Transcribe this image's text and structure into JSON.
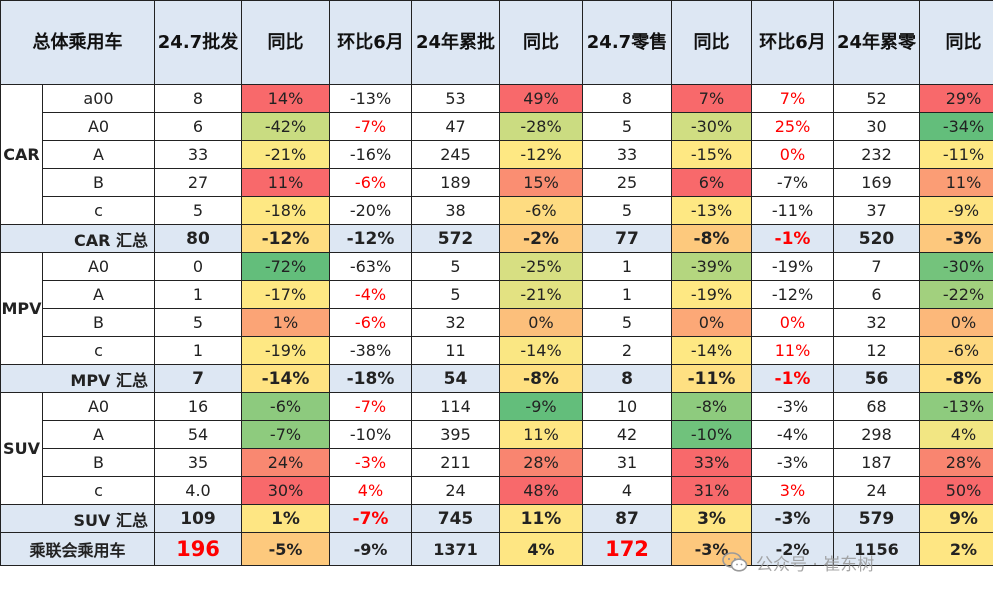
{
  "headers": [
    "总体乘用车",
    "24.7批发",
    "同比",
    "环比6月",
    "24年累批",
    "同比",
    "24.7零售",
    "同比",
    "环比6月",
    "24年累零",
    "同比"
  ],
  "groups": [
    {
      "label": "CAR",
      "rows": [
        {
          "sub": "a00",
          "cells": [
            {
              "v": "8"
            },
            {
              "v": "14%",
              "bg": "#f8696b"
            },
            {
              "v": "-13%"
            },
            {
              "v": "53"
            },
            {
              "v": "49%",
              "bg": "#f8696b"
            },
            {
              "v": "8"
            },
            {
              "v": "7%",
              "bg": "#f8696b"
            },
            {
              "v": "7%",
              "red": true
            },
            {
              "v": "52"
            },
            {
              "v": "29%",
              "bg": "#f8696b"
            }
          ]
        },
        {
          "sub": "A0",
          "cells": [
            {
              "v": "6"
            },
            {
              "v": "-42%",
              "bg": "#c9dc81"
            },
            {
              "v": "-7%",
              "red": true
            },
            {
              "v": "47"
            },
            {
              "v": "-28%",
              "bg": "#cbdc81"
            },
            {
              "v": "5"
            },
            {
              "v": "-30%",
              "bg": "#d0de82"
            },
            {
              "v": "25%",
              "red": true
            },
            {
              "v": "30"
            },
            {
              "v": "-34%",
              "bg": "#63be7b"
            }
          ]
        },
        {
          "sub": "A",
          "cells": [
            {
              "v": "33"
            },
            {
              "v": "-21%",
              "bg": "#fbe983"
            },
            {
              "v": "-16%"
            },
            {
              "v": "245"
            },
            {
              "v": "-12%",
              "bg": "#fee883"
            },
            {
              "v": "33"
            },
            {
              "v": "-15%",
              "bg": "#fee883"
            },
            {
              "v": "0%",
              "red": true
            },
            {
              "v": "232"
            },
            {
              "v": "-11%",
              "bg": "#fee883"
            }
          ]
        },
        {
          "sub": "B",
          "cells": [
            {
              "v": "27"
            },
            {
              "v": "11%",
              "bg": "#f8696b"
            },
            {
              "v": "-6%",
              "red": true
            },
            {
              "v": "189"
            },
            {
              "v": "15%",
              "bg": "#fa8e72"
            },
            {
              "v": "25"
            },
            {
              "v": "6%",
              "bg": "#f8696b"
            },
            {
              "v": "-7%"
            },
            {
              "v": "169"
            },
            {
              "v": "11%",
              "bg": "#fb9d75"
            }
          ]
        },
        {
          "sub": "c",
          "cells": [
            {
              "v": "5"
            },
            {
              "v": "-18%",
              "bg": "#fee883"
            },
            {
              "v": "-20%"
            },
            {
              "v": "38"
            },
            {
              "v": "-6%",
              "bg": "#fedc81"
            },
            {
              "v": "5"
            },
            {
              "v": "-13%",
              "bg": "#fee883"
            },
            {
              "v": "-11%"
            },
            {
              "v": "37"
            },
            {
              "v": "-9%",
              "bg": "#fee482"
            }
          ]
        }
      ],
      "summary": {
        "label": "CAR 汇总",
        "cells": [
          {
            "v": "80"
          },
          {
            "v": "-12%",
            "bg": "#fedd81"
          },
          {
            "v": "-12%"
          },
          {
            "v": "572"
          },
          {
            "v": "-2%",
            "bg": "#fdca7d"
          },
          {
            "v": "77"
          },
          {
            "v": "-8%",
            "bg": "#fdc97d"
          },
          {
            "v": "-1%",
            "red": true
          },
          {
            "v": "520"
          },
          {
            "v": "-3%",
            "bg": "#fdc87d"
          }
        ]
      }
    },
    {
      "label": "MPV",
      "rows": [
        {
          "sub": "A0",
          "cells": [
            {
              "v": "0"
            },
            {
              "v": "-72%",
              "bg": "#63be7b"
            },
            {
              "v": "-63%"
            },
            {
              "v": "5"
            },
            {
              "v": "-25%",
              "bg": "#d7df82"
            },
            {
              "v": "1"
            },
            {
              "v": "-39%",
              "bg": "#b4d67f"
            },
            {
              "v": "-19%"
            },
            {
              "v": "7"
            },
            {
              "v": "-30%",
              "bg": "#74c37c"
            }
          ]
        },
        {
          "sub": "A",
          "cells": [
            {
              "v": "1"
            },
            {
              "v": "-17%",
              "bg": "#fee883"
            },
            {
              "v": "-4%",
              "red": true
            },
            {
              "v": "5"
            },
            {
              "v": "-21%",
              "bg": "#e3e282"
            },
            {
              "v": "1"
            },
            {
              "v": "-19%",
              "bg": "#fee883"
            },
            {
              "v": "-12%"
            },
            {
              "v": "6"
            },
            {
              "v": "-22%",
              "bg": "#a2d07e"
            }
          ]
        },
        {
          "sub": "B",
          "cells": [
            {
              "v": "5"
            },
            {
              "v": "1%",
              "bg": "#fba476"
            },
            {
              "v": "-6%",
              "red": true
            },
            {
              "v": "32"
            },
            {
              "v": "0%",
              "bg": "#fcbf7b"
            },
            {
              "v": "5"
            },
            {
              "v": "0%",
              "bg": "#fca877"
            },
            {
              "v": "0%",
              "red": true
            },
            {
              "v": "32"
            },
            {
              "v": "0%",
              "bg": "#fcb87a"
            }
          ]
        },
        {
          "sub": "c",
          "cells": [
            {
              "v": "1"
            },
            {
              "v": "-19%",
              "bg": "#fee883"
            },
            {
              "v": "-38%"
            },
            {
              "v": "11"
            },
            {
              "v": "-14%",
              "bg": "#fae783"
            },
            {
              "v": "2"
            },
            {
              "v": "-14%",
              "bg": "#fee883"
            },
            {
              "v": "11%",
              "red": true
            },
            {
              "v": "12"
            },
            {
              "v": "-6%",
              "bg": "#fed980"
            }
          ]
        }
      ],
      "summary": {
        "label": "MPV 汇总",
        "cells": [
          {
            "v": "7"
          },
          {
            "v": "-14%",
            "bg": "#fee382"
          },
          {
            "v": "-18%"
          },
          {
            "v": "54"
          },
          {
            "v": "-8%",
            "bg": "#fee081"
          },
          {
            "v": "8"
          },
          {
            "v": "-11%",
            "bg": "#fee082"
          },
          {
            "v": "-1%",
            "red": true
          },
          {
            "v": "56"
          },
          {
            "v": "-8%",
            "bg": "#fee081"
          }
        ]
      }
    },
    {
      "label": "SUV",
      "rows": [
        {
          "sub": "A0",
          "cells": [
            {
              "v": "16"
            },
            {
              "v": "-6%",
              "bg": "#8dca7e"
            },
            {
              "v": "-7%",
              "red": true
            },
            {
              "v": "114"
            },
            {
              "v": "-9%",
              "bg": "#63be7b"
            },
            {
              "v": "10"
            },
            {
              "v": "-8%",
              "bg": "#8ecb7e"
            },
            {
              "v": "-3%"
            },
            {
              "v": "68"
            },
            {
              "v": "-13%",
              "bg": "#8ecb7e"
            }
          ]
        },
        {
          "sub": "A",
          "cells": [
            {
              "v": "54"
            },
            {
              "v": "-7%",
              "bg": "#8ecb7e"
            },
            {
              "v": "-10%"
            },
            {
              "v": "395"
            },
            {
              "v": "11%",
              "bg": "#fee683"
            },
            {
              "v": "42"
            },
            {
              "v": "-10%",
              "bg": "#70c27c"
            },
            {
              "v": "-4%"
            },
            {
              "v": "298"
            },
            {
              "v": "4%",
              "bg": "#f2e683"
            }
          ]
        },
        {
          "sub": "B",
          "cells": [
            {
              "v": "35"
            },
            {
              "v": "24%",
              "bg": "#f98871"
            },
            {
              "v": "-3%",
              "red": true
            },
            {
              "v": "211"
            },
            {
              "v": "28%",
              "bg": "#f98570"
            },
            {
              "v": "31"
            },
            {
              "v": "33%",
              "bg": "#f8696b"
            },
            {
              "v": "-3%"
            },
            {
              "v": "187"
            },
            {
              "v": "28%",
              "bg": "#f98570"
            }
          ]
        },
        {
          "sub": "c",
          "cells": [
            {
              "v": "4.0"
            },
            {
              "v": "30%",
              "bg": "#f8696b"
            },
            {
              "v": "4%",
              "red": true
            },
            {
              "v": "24"
            },
            {
              "v": "48%",
              "bg": "#f8696b"
            },
            {
              "v": "4"
            },
            {
              "v": "31%",
              "bg": "#f8696b"
            },
            {
              "v": "3%",
              "red": true
            },
            {
              "v": "24"
            },
            {
              "v": "50%",
              "bg": "#f8696b"
            }
          ]
        }
      ],
      "summary": {
        "label": "SUV 汇总",
        "cells": [
          {
            "v": "109"
          },
          {
            "v": "1%",
            "bg": "#fee683"
          },
          {
            "v": "-7%",
            "red": true
          },
          {
            "v": "745"
          },
          {
            "v": "11%",
            "bg": "#fee683"
          },
          {
            "v": "87"
          },
          {
            "v": "3%",
            "bg": "#fee683"
          },
          {
            "v": "-3%"
          },
          {
            "v": "579"
          },
          {
            "v": "9%",
            "bg": "#fee683"
          }
        ]
      }
    }
  ],
  "total": {
    "label": "乘联会乘用车",
    "cells": [
      {
        "v": "196",
        "big": true
      },
      {
        "v": "-5%",
        "bg": "#fdc97d"
      },
      {
        "v": "-9%"
      },
      {
        "v": "1371"
      },
      {
        "v": "4%",
        "bg": "#fee683"
      },
      {
        "v": "172",
        "big": true
      },
      {
        "v": "-3%",
        "bg": "#fdc87d"
      },
      {
        "v": "-2%"
      },
      {
        "v": "1156"
      },
      {
        "v": "2%",
        "bg": "#fee683"
      }
    ]
  },
  "watermark": {
    "text": "公众号 · 崔东树",
    "icon": "wechat-icon"
  }
}
